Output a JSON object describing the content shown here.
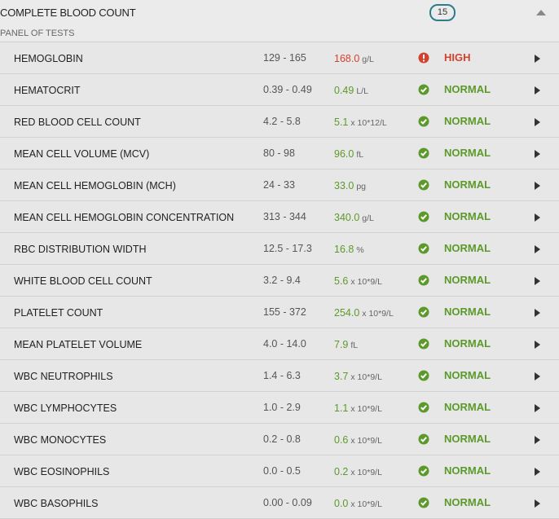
{
  "header": {
    "title": "COMPLETE BLOOD COUNT",
    "count": "15",
    "subtitle": "PANEL OF TESTS"
  },
  "table": {
    "rows": [
      {
        "name": "HEMOGLOBIN",
        "range": "129 - 165",
        "value": "168.0",
        "unit": "g/L",
        "status": "HIGH",
        "color": "#d3412f",
        "icon": "alert"
      },
      {
        "name": "HEMATOCRIT",
        "range": "0.39 - 0.49",
        "value": "0.49",
        "unit": "L/L",
        "status": "NORMAL",
        "color": "#5b9a2a",
        "icon": "check"
      },
      {
        "name": "RED BLOOD CELL COUNT",
        "range": "4.2 - 5.8",
        "value": "5.1",
        "unit": "x 10*12/L",
        "status": "NORMAL",
        "color": "#5b9a2a",
        "icon": "check"
      },
      {
        "name": "MEAN CELL VOLUME (MCV)",
        "range": "80 - 98",
        "value": "96.0",
        "unit": "fL",
        "status": "NORMAL",
        "color": "#5b9a2a",
        "icon": "check"
      },
      {
        "name": "MEAN CELL HEMOGLOBIN (MCH)",
        "range": "24 - 33",
        "value": "33.0",
        "unit": "pg",
        "status": "NORMAL",
        "color": "#5b9a2a",
        "icon": "check"
      },
      {
        "name": "MEAN CELL HEMOGLOBIN CONCENTRATION",
        "range": "313 - 344",
        "value": "340.0",
        "unit": "g/L",
        "status": "NORMAL",
        "color": "#5b9a2a",
        "icon": "check"
      },
      {
        "name": "RBC DISTRIBUTION WIDTH",
        "range": "12.5 - 17.3",
        "value": "16.8",
        "unit": "%",
        "status": "NORMAL",
        "color": "#5b9a2a",
        "icon": "check"
      },
      {
        "name": "WHITE BLOOD CELL COUNT",
        "range": "3.2 - 9.4",
        "value": "5.6",
        "unit": "x 10*9/L",
        "status": "NORMAL",
        "color": "#5b9a2a",
        "icon": "check"
      },
      {
        "name": "PLATELET COUNT",
        "range": "155 - 372",
        "value": "254.0",
        "unit": "x 10*9/L",
        "status": "NORMAL",
        "color": "#5b9a2a",
        "icon": "check"
      },
      {
        "name": "MEAN PLATELET VOLUME",
        "range": "4.0 - 14.0",
        "value": "7.9",
        "unit": "fL",
        "status": "NORMAL",
        "color": "#5b9a2a",
        "icon": "check"
      },
      {
        "name": "WBC NEUTROPHILS",
        "range": "1.4 - 6.3",
        "value": "3.7",
        "unit": "x 10*9/L",
        "status": "NORMAL",
        "color": "#5b9a2a",
        "icon": "check"
      },
      {
        "name": "WBC LYMPHOCYTES",
        "range": "1.0 - 2.9",
        "value": "1.1",
        "unit": "x 10*9/L",
        "status": "NORMAL",
        "color": "#5b9a2a",
        "icon": "check"
      },
      {
        "name": "WBC MONOCYTES",
        "range": "0.2 - 0.8",
        "value": "0.6",
        "unit": "x 10*9/L",
        "status": "NORMAL",
        "color": "#5b9a2a",
        "icon": "check"
      },
      {
        "name": "WBC EOSINOPHILS",
        "range": "0.0 - 0.5",
        "value": "0.2",
        "unit": "x 10*9/L",
        "status": "NORMAL",
        "color": "#5b9a2a",
        "icon": "check"
      },
      {
        "name": "WBC BASOPHILS",
        "range": "0.00 - 0.09",
        "value": "0.0",
        "unit": "x 10*9/L",
        "status": "NORMAL",
        "color": "#5b9a2a",
        "icon": "check"
      }
    ]
  }
}
